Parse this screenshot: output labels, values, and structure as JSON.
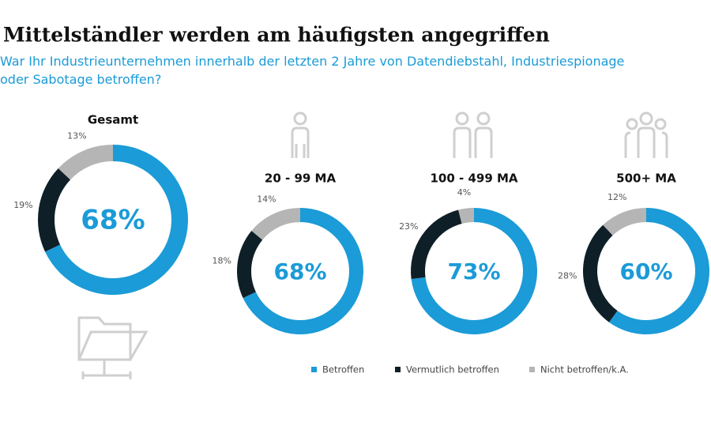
{
  "header": {
    "title": "Mittelständler werden am häufigsten angegriffen",
    "subtitle": "War Ihr Industrieunternehmen innerhalb der letzten 2 Jahre von Datendiebstahl, Industriespionage oder Sabotage betroffen?"
  },
  "chart_data": [
    {
      "type": "donut",
      "title": "Gesamt",
      "categories": [
        "Betroffen",
        "Vermutlich betroffen",
        "Nicht betroffen/k.A."
      ],
      "values": [
        68,
        19,
        13
      ],
      "value_labels": [
        "68%",
        "19%",
        "13%"
      ],
      "colors": [
        "#1b9bd7",
        "#0e1f27",
        "#b5b5b5"
      ]
    },
    {
      "type": "donut",
      "title": "20 - 99 MA",
      "categories": [
        "Betroffen",
        "Vermutlich betroffen",
        "Nicht betroffen/k.A."
      ],
      "values": [
        68,
        18,
        14
      ],
      "value_labels": [
        "68%",
        "18%",
        "14%"
      ],
      "colors": [
        "#1b9bd7",
        "#0e1f27",
        "#b5b5b5"
      ]
    },
    {
      "type": "donut",
      "title": "100 - 499 MA",
      "categories": [
        "Betroffen",
        "Vermutlich betroffen",
        "Nicht betroffen/k.A."
      ],
      "values": [
        73,
        23,
        4
      ],
      "value_labels": [
        "73%",
        "23%",
        "4%"
      ],
      "colors": [
        "#1b9bd7",
        "#0e1f27",
        "#b5b5b5"
      ]
    },
    {
      "type": "donut",
      "title": "500+ MA",
      "categories": [
        "Betroffen",
        "Vermutlich betroffen",
        "Nicht betroffen/k.A."
      ],
      "values": [
        60,
        28,
        12
      ],
      "value_labels": [
        "60%",
        "28%",
        "12%"
      ],
      "colors": [
        "#1b9bd7",
        "#0e1f27",
        "#b5b5b5"
      ]
    }
  ]
}
